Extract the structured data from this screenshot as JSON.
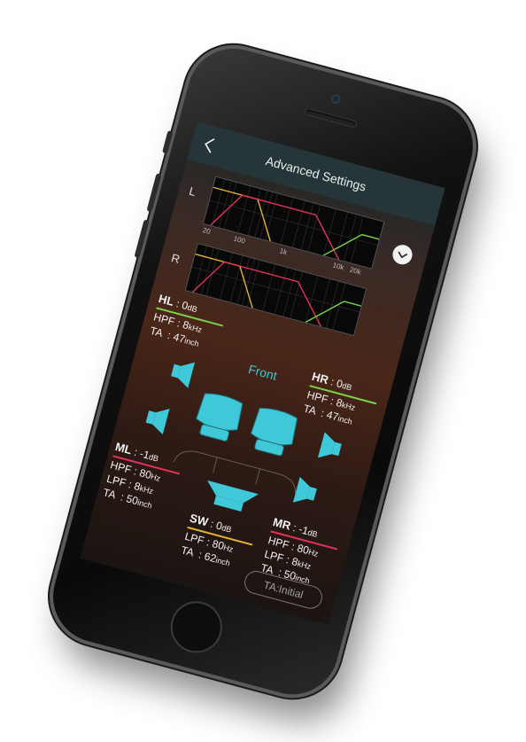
{
  "header": {
    "title": "Advanced Settings"
  },
  "graph": {
    "left_label": "L",
    "right_label": "R",
    "ticks": [
      "20",
      "100",
      "1k",
      "10k",
      "20k"
    ]
  },
  "section_label": "Front",
  "speakers": {
    "hl": {
      "name": "HL",
      "gain": ": 0",
      "gain_unit": "dB",
      "hpf_label": "HPF",
      "hpf": ": 8",
      "hpf_unit": "kHz",
      "ta_label": "TA",
      "ta": ": 47",
      "ta_unit": "inch"
    },
    "hr": {
      "name": "HR",
      "gain": ": 0",
      "gain_unit": "dB",
      "hpf_label": "HPF",
      "hpf": ": 8",
      "hpf_unit": "kHz",
      "ta_label": "TA",
      "ta": ": 47",
      "ta_unit": "inch"
    },
    "ml": {
      "name": "ML",
      "gain": ": -1",
      "gain_unit": "dB",
      "hpf_label": "HPF",
      "hpf": ": 80",
      "hpf_unit": "Hz",
      "lpf_label": "LPF",
      "lpf": ": 8",
      "lpf_unit": "kHz",
      "ta_label": "TA",
      "ta": ": 50",
      "ta_unit": "inch"
    },
    "mr": {
      "name": "MR",
      "gain": ": -1",
      "gain_unit": "dB",
      "hpf_label": "HPF",
      "hpf": ": 80",
      "hpf_unit": "Hz",
      "lpf_label": "LPF",
      "lpf": ": 8",
      "lpf_unit": "kHz",
      "ta_label": "TA",
      "ta": ": 50",
      "ta_unit": "inch"
    },
    "sw": {
      "name": "SW",
      "gain": ": 0",
      "gain_unit": "dB",
      "lpf_label": "LPF",
      "lpf": ": 80",
      "lpf_unit": "Hz",
      "ta_label": "TA",
      "ta": ": 62",
      "ta_unit": "inch"
    }
  },
  "colors": {
    "hl": "#7ad04a",
    "hr": "#7ad04a",
    "ml": "#e0325a",
    "mr": "#e0325a",
    "sw": "#e8b23a",
    "accent": "#3fc8d8"
  },
  "footer": {
    "initial_button": "TA:Initial"
  }
}
